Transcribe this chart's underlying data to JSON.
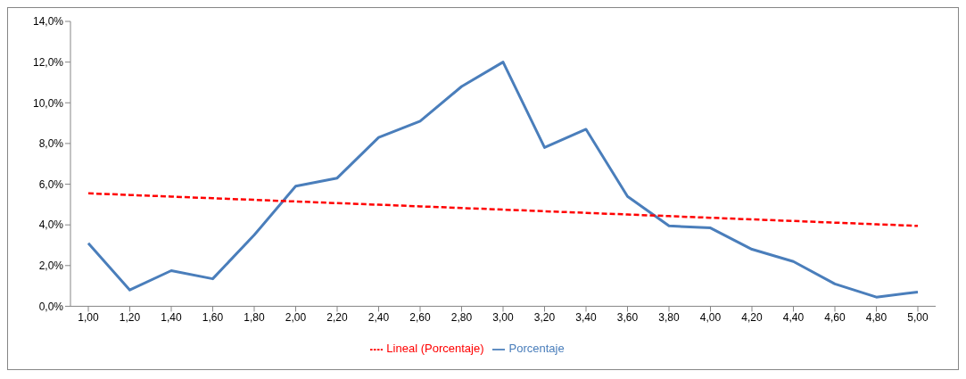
{
  "chart_data": {
    "type": "line",
    "categories": [
      "1,00",
      "1,20",
      "1,40",
      "1,60",
      "1,80",
      "2,00",
      "2,20",
      "2,40",
      "2,60",
      "2,80",
      "3,00",
      "3,20",
      "3,40",
      "3,60",
      "3,80",
      "4,00",
      "4,20",
      "4,40",
      "4,60",
      "4,80",
      "5,00"
    ],
    "series": [
      {
        "name": "Porcentaje",
        "color": "#4a7ebb",
        "line_style": "solid",
        "values": [
          3.1,
          0.8,
          1.75,
          1.35,
          3.5,
          5.9,
          6.3,
          8.3,
          9.1,
          10.8,
          12.0,
          7.8,
          8.7,
          5.4,
          3.95,
          3.85,
          2.8,
          2.2,
          1.1,
          0.45,
          0.7
        ]
      },
      {
        "name": "Lineal (Porcentaje)",
        "color": "#ff0000",
        "line_style": "dashed",
        "values": [
          5.55,
          5.47,
          5.39,
          5.31,
          5.23,
          5.15,
          5.07,
          4.99,
          4.91,
          4.83,
          4.75,
          4.67,
          4.59,
          4.51,
          4.43,
          4.35,
          4.27,
          4.19,
          4.11,
          4.03,
          3.95
        ]
      }
    ],
    "ylim": [
      0,
      14
    ],
    "yticks": [
      {
        "value": 0,
        "label": "0,0%"
      },
      {
        "value": 2,
        "label": "2,0%"
      },
      {
        "value": 4,
        "label": "4,0%"
      },
      {
        "value": 6,
        "label": "6,0%"
      },
      {
        "value": 8,
        "label": "8,0%"
      },
      {
        "value": 10,
        "label": "10,0%"
      },
      {
        "value": 12,
        "label": "12,0%"
      },
      {
        "value": 14,
        "label": "14,0%"
      }
    ],
    "grid": false,
    "legend": "bottom",
    "marker": "none"
  }
}
